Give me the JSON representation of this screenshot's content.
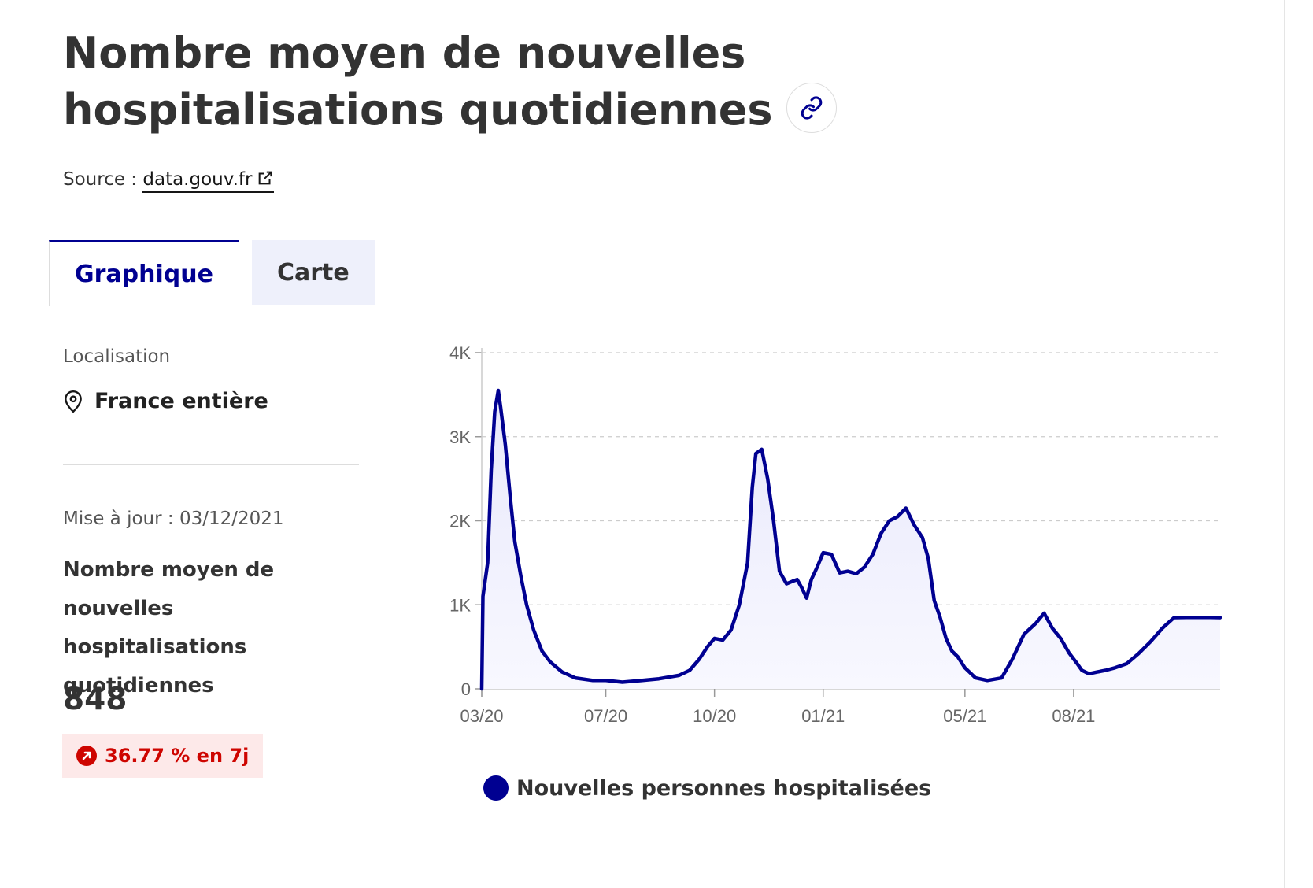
{
  "header": {
    "title": "Nombre moyen de nouvelles hospitalisations quotidiennes",
    "source_prefix": "Source : ",
    "source_link": "data.gouv.fr"
  },
  "tabs": [
    {
      "label": "Graphique",
      "active": true
    },
    {
      "label": "Carte",
      "active": false
    }
  ],
  "sidebar": {
    "location_label": "Localisation",
    "location_value": "France entière",
    "update_text": "Mise à jour : 03/12/2021",
    "indicator_name": "Nombre moyen de nouvelles hospitalisations quotidiennes",
    "value": "848",
    "trend_text": "36.77 % en 7j"
  },
  "colors": {
    "accent": "#000091",
    "trend_red": "#ce0500",
    "trend_bg": "#fde9e9"
  },
  "icons": [
    "link-icon",
    "external-link-icon",
    "map-pin-icon",
    "arrow-up-right-icon"
  ],
  "chart_data": {
    "type": "area",
    "ylim": [
      0,
      4000
    ],
    "y_ticks": [
      0,
      1000,
      2000,
      3000,
      4000
    ],
    "y_tick_labels": [
      "0",
      "1K",
      "2K",
      "3K",
      "4K"
    ],
    "x_ticks": [
      "2020-03-18",
      "2020-07-01",
      "2020-10-01",
      "2021-01-01",
      "2021-05-01",
      "2021-08-01"
    ],
    "x_tick_labels": [
      "03/20",
      "07/20",
      "10/20",
      "01/21",
      "05/21",
      "08/21"
    ],
    "xlim": [
      "2020-03-18",
      "2021-12-03"
    ],
    "grid": "horizontal dashed",
    "legend_position": "bottom",
    "series": [
      {
        "name": "Nouvelles personnes hospitalisées",
        "color": "#000091",
        "x": [
          "2020-03-18",
          "2020-03-19",
          "2020-03-23",
          "2020-03-26",
          "2020-03-29",
          "2020-04-01",
          "2020-04-03",
          "2020-04-07",
          "2020-04-11",
          "2020-04-15",
          "2020-04-20",
          "2020-04-25",
          "2020-05-01",
          "2020-05-08",
          "2020-05-15",
          "2020-05-25",
          "2020-06-05",
          "2020-06-20",
          "2020-07-01",
          "2020-07-15",
          "2020-08-01",
          "2020-08-15",
          "2020-09-01",
          "2020-09-10",
          "2020-09-18",
          "2020-09-25",
          "2020-10-01",
          "2020-10-08",
          "2020-10-15",
          "2020-10-22",
          "2020-10-29",
          "2020-11-02",
          "2020-11-05",
          "2020-11-10",
          "2020-11-15",
          "2020-11-20",
          "2020-11-25",
          "2020-12-01",
          "2020-12-06",
          "2020-12-10",
          "2020-12-14",
          "2020-12-18",
          "2020-12-22",
          "2020-12-27",
          "2021-01-01",
          "2021-01-08",
          "2021-01-15",
          "2021-01-22",
          "2021-01-29",
          "2021-02-05",
          "2021-02-12",
          "2021-02-19",
          "2021-02-26",
          "2021-03-05",
          "2021-03-12",
          "2021-03-19",
          "2021-03-26",
          "2021-03-31",
          "2021-04-02",
          "2021-04-05",
          "2021-04-10",
          "2021-04-15",
          "2021-04-20",
          "2021-04-25",
          "2021-05-01",
          "2021-05-10",
          "2021-05-20",
          "2021-06-01",
          "2021-06-10",
          "2021-06-20",
          "2021-06-30",
          "2021-07-07",
          "2021-07-14",
          "2021-07-21",
          "2021-07-28",
          "2021-08-04",
          "2021-08-08",
          "2021-08-14",
          "2021-08-21",
          "2021-08-28",
          "2021-09-05",
          "2021-09-15",
          "2021-09-25",
          "2021-10-05",
          "2021-10-15",
          "2021-10-25",
          "2021-11-05",
          "2021-11-15",
          "2021-11-25",
          "2021-12-03"
        ],
        "y": [
          0,
          1100,
          1500,
          2600,
          3300,
          3550,
          3350,
          2900,
          2300,
          1750,
          1350,
          1000,
          700,
          450,
          320,
          200,
          130,
          100,
          100,
          80,
          100,
          120,
          160,
          220,
          350,
          500,
          600,
          580,
          700,
          1000,
          1500,
          2400,
          2800,
          2850,
          2500,
          2000,
          1400,
          1250,
          1280,
          1300,
          1200,
          1080,
          1300,
          1450,
          1620,
          1600,
          1380,
          1400,
          1370,
          1450,
          1600,
          1850,
          2000,
          2050,
          2150,
          1950,
          1800,
          1550,
          1350,
          1050,
          850,
          600,
          450,
          380,
          250,
          130,
          100,
          130,
          350,
          650,
          780,
          900,
          720,
          600,
          430,
          300,
          220,
          180,
          200,
          220,
          250,
          300,
          420,
          560,
          720,
          848,
          850,
          850,
          850,
          848
        ]
      }
    ]
  }
}
